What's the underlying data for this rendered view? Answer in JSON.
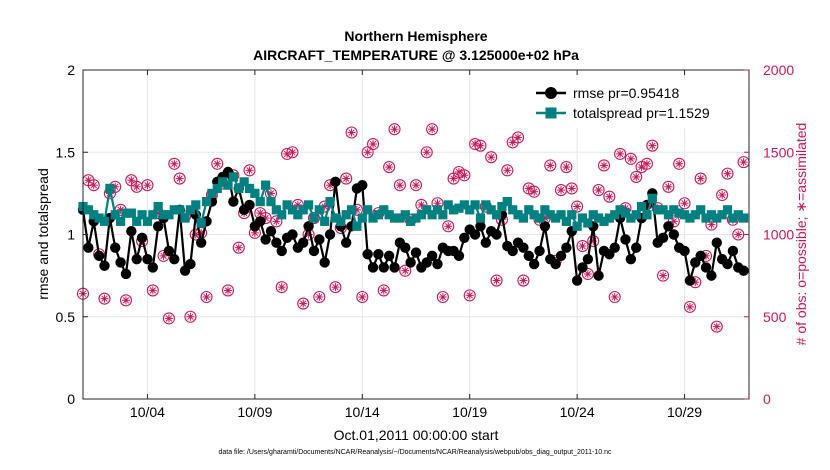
{
  "chart_data": {
    "type": "line",
    "title": "Northern Hemisphere",
    "subtitle": "AIRCRAFT_TEMPERATURE @ 3.125000e+02 hPa",
    "xlabel": "Oct.01,2011 00:00:00 start",
    "ylabel": "rmse and totalspread",
    "y2label": "# of obs: o=possible; ∗=assimilated",
    "xlim": [
      1,
      32
    ],
    "ylim": [
      0,
      2
    ],
    "y2lim": [
      0,
      2000
    ],
    "xticks": [
      4,
      9,
      14,
      19,
      24,
      29
    ],
    "xtick_labels": [
      "10/04",
      "10/09",
      "10/14",
      "10/19",
      "10/24",
      "10/29"
    ],
    "yticks": [
      0,
      0.5,
      1,
      1.5,
      2
    ],
    "ytick_labels": [
      "0",
      "0.5",
      "1",
      "1.5",
      "2"
    ],
    "y2ticks": [
      0,
      500,
      1000,
      1500,
      2000
    ],
    "y2tick_labels": [
      "0",
      "500",
      "1000",
      "1500",
      "2000"
    ],
    "grid": true,
    "legend_position": "top-right",
    "colors": {
      "rmse": "#000000",
      "totalspread": "#008080",
      "obs": "#c8185a"
    },
    "x": [
      1.0,
      1.25,
      1.5,
      1.75,
      2.0,
      2.25,
      2.5,
      2.75,
      3.0,
      3.25,
      3.5,
      3.75,
      4.0,
      4.25,
      4.5,
      4.75,
      5.0,
      5.25,
      5.5,
      5.75,
      6.0,
      6.25,
      6.5,
      6.75,
      7.0,
      7.25,
      7.5,
      7.75,
      8.0,
      8.25,
      8.5,
      8.75,
      9.0,
      9.25,
      9.5,
      9.75,
      10.0,
      10.25,
      10.5,
      10.75,
      11.0,
      11.25,
      11.5,
      11.75,
      12.0,
      12.25,
      12.5,
      12.75,
      13.0,
      13.25,
      13.5,
      13.75,
      14.0,
      14.25,
      14.5,
      14.75,
      15.0,
      15.25,
      15.5,
      15.75,
      16.0,
      16.25,
      16.5,
      16.75,
      17.0,
      17.25,
      17.5,
      17.75,
      18.0,
      18.25,
      18.5,
      18.75,
      19.0,
      19.25,
      19.5,
      19.75,
      20.0,
      20.25,
      20.5,
      20.75,
      21.0,
      21.25,
      21.5,
      21.75,
      22.0,
      22.25,
      22.5,
      22.75,
      23.0,
      23.25,
      23.5,
      23.75,
      24.0,
      24.25,
      24.5,
      24.75,
      25.0,
      25.25,
      25.5,
      25.75,
      26.0,
      26.25,
      26.5,
      26.75,
      27.0,
      27.25,
      27.5,
      27.75,
      28.0,
      28.25,
      28.5,
      28.75,
      29.0,
      29.25,
      29.5,
      29.75,
      30.0,
      30.25,
      30.5,
      30.75,
      31.0,
      31.25,
      31.5,
      31.75
    ],
    "series": [
      {
        "name": "rmse pr=0.95418",
        "marker": "circle",
        "values": [
          1.15,
          0.92,
          1.08,
          0.87,
          0.81,
          1.1,
          0.92,
          0.83,
          0.76,
          1.02,
          0.85,
          0.98,
          0.85,
          0.8,
          1.05,
          1.1,
          0.9,
          0.85,
          1.15,
          0.78,
          0.82,
          1.12,
          0.95,
          1.08,
          1.2,
          1.32,
          1.35,
          1.38,
          1.2,
          1.28,
          1.15,
          1.18,
          1.05,
          1.08,
          0.97,
          1.02,
          0.95,
          0.9,
          0.98,
          1.0,
          0.92,
          0.95,
          1.05,
          0.9,
          0.97,
          0.83,
          1.0,
          1.32,
          1.05,
          0.95,
          1.05,
          1.28,
          1.3,
          0.88,
          0.8,
          0.88,
          0.8,
          0.87,
          0.8,
          0.95,
          0.92,
          0.83,
          0.89,
          0.8,
          0.83,
          0.87,
          0.82,
          0.92,
          0.9,
          0.9,
          0.87,
          0.98,
          1.03,
          1.0,
          1.05,
          0.95,
          1.02,
          1.0,
          1.12,
          0.93,
          0.9,
          0.95,
          0.92,
          0.87,
          0.82,
          0.9,
          1.05,
          0.85,
          0.82,
          0.87,
          0.92,
          1.02,
          0.72,
          0.8,
          0.85,
          1.05,
          0.75,
          0.9,
          0.88,
          0.92,
          1.1,
          0.97,
          0.85,
          0.92,
          1.1,
          1.18,
          1.25,
          0.95,
          0.98,
          1.05,
          1.0,
          0.92,
          0.9,
          0.72,
          0.83,
          0.87,
          0.8,
          0.75,
          0.95,
          0.85,
          0.82,
          0.9,
          0.8,
          0.78
        ]
      },
      {
        "name": "totalspread pr=1.1529",
        "marker": "square",
        "values": [
          1.17,
          1.15,
          1.12,
          1.1,
          1.08,
          1.28,
          1.12,
          1.08,
          1.13,
          1.13,
          1.08,
          1.12,
          1.08,
          1.12,
          1.17,
          1.12,
          1.12,
          1.15,
          1.15,
          1.1,
          1.15,
          1.18,
          1.07,
          1.2,
          1.25,
          1.28,
          1.32,
          1.3,
          1.35,
          1.28,
          1.32,
          1.28,
          1.25,
          1.2,
          1.3,
          1.2,
          1.15,
          1.12,
          1.18,
          1.15,
          1.12,
          1.15,
          1.18,
          1.1,
          1.15,
          1.08,
          1.2,
          1.1,
          1.08,
          1.12,
          1.15,
          1.05,
          1.1,
          1.15,
          1.1,
          1.12,
          1.15,
          1.12,
          1.1,
          1.1,
          1.12,
          1.08,
          1.1,
          1.12,
          1.15,
          1.12,
          1.15,
          1.12,
          1.18,
          1.15,
          1.16,
          1.18,
          1.15,
          1.18,
          1.1,
          1.18,
          1.15,
          1.12,
          1.17,
          1.2,
          1.15,
          1.12,
          1.1,
          1.15,
          1.12,
          1.1,
          1.15,
          1.12,
          1.1,
          1.12,
          1.08,
          1.12,
          1.05,
          1.1,
          1.07,
          1.12,
          1.1,
          1.08,
          1.1,
          1.12,
          1.15,
          1.13,
          1.1,
          1.12,
          1.17,
          1.12,
          1.22,
          1.15,
          1.15,
          1.12,
          1.15,
          1.13,
          1.12,
          1.1,
          1.12,
          1.15,
          1.1,
          1.12,
          1.1,
          1.12,
          1.15,
          1.1,
          1.12,
          1.1
        ]
      }
    ],
    "obs_counts": {
      "name": "# of obs",
      "x": [
        1.0,
        1.25,
        1.5,
        1.75,
        2.0,
        2.25,
        2.5,
        2.75,
        3.0,
        3.25,
        3.5,
        3.75,
        4.0,
        4.25,
        4.5,
        4.75,
        5.0,
        5.25,
        5.5,
        5.75,
        6.0,
        6.25,
        6.5,
        6.75,
        7.0,
        7.25,
        7.5,
        7.75,
        8.0,
        8.25,
        8.5,
        8.75,
        9.0,
        9.25,
        9.5,
        9.75,
        10.0,
        10.25,
        10.5,
        10.75,
        11.0,
        11.25,
        11.5,
        11.75,
        12.0,
        12.25,
        12.5,
        12.75,
        13.0,
        13.25,
        13.5,
        13.75,
        14.0,
        14.25,
        14.5,
        14.75,
        15.0,
        15.25,
        15.5,
        15.75,
        16.0,
        16.25,
        16.5,
        16.75,
        17.0,
        17.25,
        17.5,
        17.75,
        18.0,
        18.25,
        18.5,
        18.75,
        19.0,
        19.25,
        19.5,
        19.75,
        20.0,
        20.25,
        20.5,
        20.75,
        21.0,
        21.25,
        21.5,
        21.75,
        22.0,
        22.25,
        22.5,
        22.75,
        23.0,
        23.25,
        23.5,
        23.75,
        24.0,
        24.25,
        24.5,
        24.75,
        25.0,
        25.25,
        25.5,
        25.75,
        26.0,
        26.25,
        26.5,
        26.75,
        27.0,
        27.25,
        27.5,
        27.75,
        28.0,
        28.25,
        28.5,
        28.75,
        29.0,
        29.25,
        29.5,
        29.75,
        30.0,
        30.25,
        30.5,
        30.75,
        31.0,
        31.25,
        31.5,
        31.75
      ],
      "possible": [
        640,
        1330,
        1300,
        880,
        610,
        1250,
        1290,
        1150,
        600,
        1330,
        1290,
        960,
        1300,
        660,
        1130,
        870,
        490,
        1430,
        1340,
        1110,
        500,
        1000,
        1010,
        620,
        1240,
        1430,
        1310,
        660,
        1360,
        920,
        1130,
        1390,
        1010,
        1130,
        1100,
        1250,
        1080,
        680,
        1490,
        1500,
        1180,
        580,
        1000,
        1100,
        620,
        1170,
        1300,
        680,
        1040,
        1340,
        1620,
        1150,
        620,
        1500,
        1550,
        1130,
        660,
        1410,
        1640,
        1300,
        780,
        1090,
        1300,
        1180,
        1500,
        1640,
        1190,
        620,
        1050,
        1340,
        1380,
        1360,
        630,
        1550,
        1540,
        1170,
        1470,
        720,
        1090,
        1390,
        1560,
        1590,
        720,
        1280,
        1260,
        1090,
        1100,
        1420,
        840,
        1270,
        1410,
        1280,
        1170,
        930,
        760,
        960,
        1270,
        1420,
        1230,
        620,
        1490,
        1160,
        1460,
        1350,
        1410,
        1430,
        1540,
        1160,
        750,
        1290,
        1080,
        1430,
        1190,
        560,
        710,
        1340,
        870,
        1060,
        440,
        1240,
        1370,
        1090,
        1000,
        1440,
        1030,
        1130,
        0
      ]
    }
  }
}
